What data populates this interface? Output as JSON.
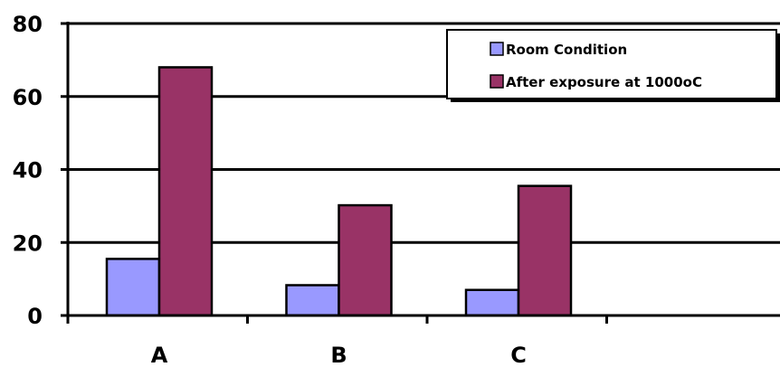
{
  "chart_data": {
    "type": "bar",
    "categories": [
      "A",
      "B",
      "C",
      ""
    ],
    "series": [
      {
        "name": "Room Condition",
        "values": [
          15.5,
          8.3,
          7.0,
          null
        ],
        "color": "#9999ff"
      },
      {
        "name": "After exposure at 1000oC",
        "values": [
          68,
          30.2,
          35.5,
          null
        ],
        "color": "#993366"
      }
    ],
    "ylim": [
      0,
      80
    ],
    "yticks": [
      0,
      20,
      40,
      60,
      80
    ],
    "grid": true,
    "legend_position": "top-right",
    "title": "",
    "xlabel": "",
    "ylabel": ""
  }
}
